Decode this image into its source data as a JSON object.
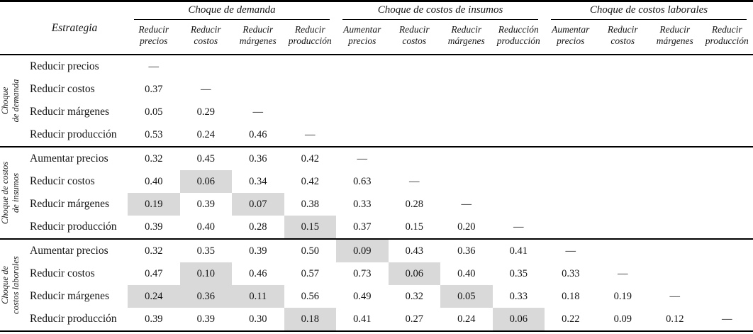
{
  "table": {
    "strategy_header": "Estrategia",
    "highlight_color": "#d9d9d9",
    "empty_marker": "—",
    "col_groups": [
      {
        "label": "Choque de demanda",
        "cols": [
          {
            "l1": "Reducir",
            "l2": "precios"
          },
          {
            "l1": "Reducir",
            "l2": "costos"
          },
          {
            "l1": "Reducir",
            "l2": "márgenes"
          },
          {
            "l1": "Reducir",
            "l2": "producción"
          }
        ]
      },
      {
        "label": "Choque de costos de insumos",
        "cols": [
          {
            "l1": "Aumentar",
            "l2": "precios"
          },
          {
            "l1": "Reducir",
            "l2": "costos"
          },
          {
            "l1": "Reducir",
            "l2": "márgenes"
          },
          {
            "l1": "Reducción",
            "l2": "producción"
          }
        ]
      },
      {
        "label": "Choque de costos laborales",
        "cols": [
          {
            "l1": "Aumentar",
            "l2": "precios"
          },
          {
            "l1": "Reducir",
            "l2": "costos"
          },
          {
            "l1": "Reducir",
            "l2": "márgenes"
          },
          {
            "l1": "Reducir",
            "l2": "producción"
          }
        ]
      }
    ],
    "row_groups": [
      {
        "label": [
          "Choque",
          "de demanda"
        ],
        "rows": [
          {
            "label": "Reducir precios",
            "values": [
              "—"
            ],
            "hl": []
          },
          {
            "label": "Reducir costos",
            "values": [
              "0.37",
              "—"
            ],
            "hl": []
          },
          {
            "label": "Reducir márgenes",
            "values": [
              "0.05",
              "0.29",
              "—"
            ],
            "hl": []
          },
          {
            "label": "Reducir producción",
            "values": [
              "0.53",
              "0.24",
              "0.46",
              "—"
            ],
            "hl": []
          }
        ]
      },
      {
        "label": [
          "Choque de costos",
          "de insumos"
        ],
        "rows": [
          {
            "label": "Aumentar precios",
            "values": [
              "0.32",
              "0.45",
              "0.36",
              "0.42",
              "—"
            ],
            "hl": []
          },
          {
            "label": "Reducir costos",
            "values": [
              "0.40",
              "0.06",
              "0.34",
              "0.42",
              "0.63",
              "—"
            ],
            "hl": [
              1
            ]
          },
          {
            "label": "Reducir márgenes",
            "values": [
              "0.19",
              "0.39",
              "0.07",
              "0.38",
              "0.33",
              "0.28",
              "—"
            ],
            "hl": [
              0,
              2
            ]
          },
          {
            "label": "Reducir producción",
            "values": [
              "0.39",
              "0.40",
              "0.28",
              "0.15",
              "0.37",
              "0.15",
              "0.20",
              "—"
            ],
            "hl": [
              3
            ]
          }
        ]
      },
      {
        "label": [
          "Choque de",
          "costos laborales"
        ],
        "rows": [
          {
            "label": "Aumentar precios",
            "values": [
              "0.32",
              "0.35",
              "0.39",
              "0.50",
              "0.09",
              "0.43",
              "0.36",
              "0.41",
              "—"
            ],
            "hl": [
              4
            ]
          },
          {
            "label": "Reducir costos",
            "values": [
              "0.47",
              "0.10",
              "0.46",
              "0.57",
              "0.73",
              "0.06",
              "0.40",
              "0.35",
              "0.33",
              "—"
            ],
            "hl": [
              1,
              5
            ]
          },
          {
            "label": "Reducir márgenes",
            "values": [
              "0.24",
              "0.36",
              "0.11",
              "0.56",
              "0.49",
              "0.32",
              "0.05",
              "0.33",
              "0.18",
              "0.19",
              "—"
            ],
            "hl": [
              0,
              1,
              2,
              6
            ]
          },
          {
            "label": "Reducir producción",
            "values": [
              "0.39",
              "0.39",
              "0.30",
              "0.18",
              "0.41",
              "0.27",
              "0.24",
              "0.06",
              "0.22",
              "0.09",
              "0.12",
              "—"
            ],
            "hl": [
              3,
              7
            ]
          }
        ]
      }
    ]
  }
}
